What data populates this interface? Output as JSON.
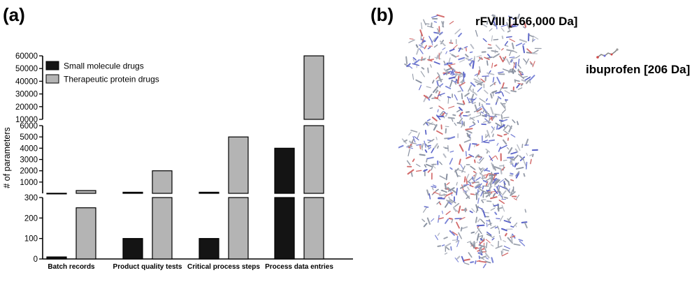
{
  "panel_a_label": "(a)",
  "panel_b_label": "(b)",
  "chart_data": {
    "type": "bar",
    "ylabel": "# of parameters",
    "categories": [
      "Batch records",
      "Product quality tests",
      "Critical process steps",
      "Process data entries"
    ],
    "series": [
      {
        "name": "Small molecule drugs",
        "color": "#141414",
        "values": [
          10,
          100,
          100,
          4000
        ]
      },
      {
        "name": "Therapeutic protein drugs",
        "color": "#b4b4b4",
        "values": [
          250,
          2000,
          5000,
          60000
        ]
      }
    ],
    "y_axis_segments": [
      {
        "range": [
          0,
          300
        ],
        "ticks": [
          "0",
          "100",
          "200",
          "300"
        ]
      },
      {
        "range": [
          0,
          6000
        ],
        "ticks": [
          "1000",
          "2000",
          "3000",
          "4000",
          "5000",
          "6000"
        ]
      },
      {
        "range": [
          10000,
          60000
        ],
        "ticks": [
          "10000",
          "20000",
          "30000",
          "40000",
          "50000",
          "60000"
        ]
      }
    ],
    "legend_position": "top-left",
    "grid": false
  },
  "molecules": {
    "protein_label": "rFVIII [166,000 Da]",
    "small_label": "ibuprofen [206 Da]",
    "protein_icon": "protein-structure-icon",
    "small_icon": "molecule-stick-icon"
  }
}
